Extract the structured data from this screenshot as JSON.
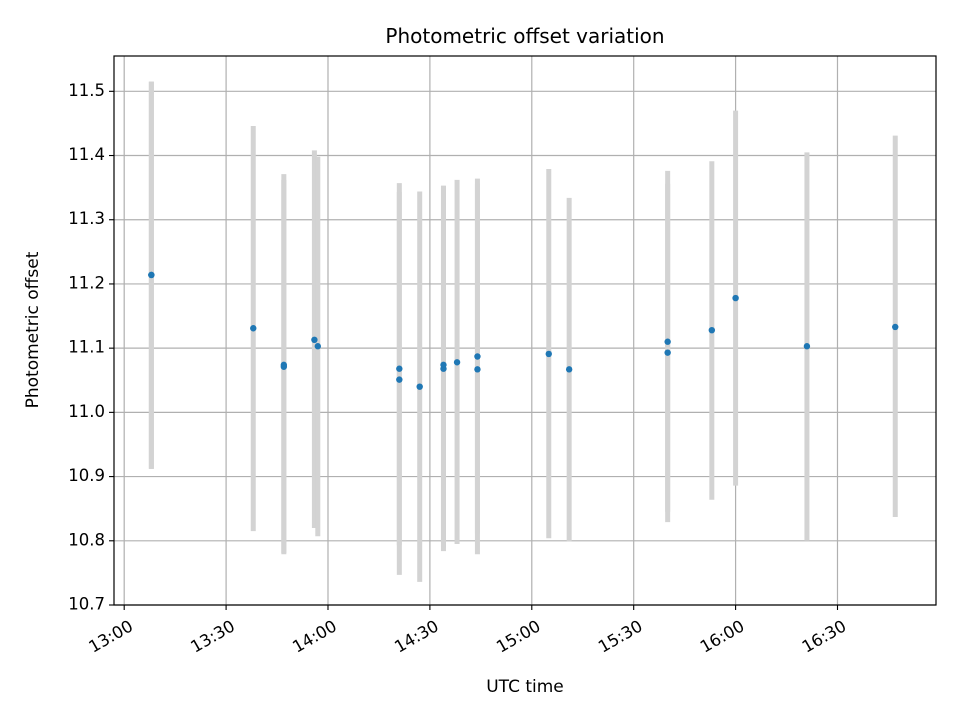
{
  "chart_data": {
    "type": "scatter",
    "title": "Photometric offset variation",
    "xlabel": "UTC time",
    "ylabel": "Photometric offset",
    "xlim": [
      "12:57",
      "16:59"
    ],
    "ylim": [
      10.7,
      11.555
    ],
    "grid": true,
    "x_ticks": [
      "13:00",
      "13:30",
      "14:00",
      "14:30",
      "15:00",
      "15:30",
      "16:00",
      "16:30"
    ],
    "y_ticks": [
      "10.7",
      "10.8",
      "10.9",
      "11.0",
      "11.1",
      "11.2",
      "11.3",
      "11.4",
      "11.5"
    ],
    "point_color": "#1f77b4",
    "errorbar_color": "#d3d3d3",
    "points": [
      {
        "x": "13:08",
        "y": 11.214,
        "ylow": 10.912,
        "yhigh": 11.515
      },
      {
        "x": "13:08",
        "y": 11.214,
        "ylow": 10.912,
        "yhigh": 11.515
      },
      {
        "x": "13:38",
        "y": 11.131,
        "ylow": 10.815,
        "yhigh": 11.446
      },
      {
        "x": "13:47",
        "y": 11.074,
        "ylow": 10.779,
        "yhigh": 11.371
      },
      {
        "x": "13:47",
        "y": 11.071,
        "ylow": 10.781,
        "yhigh": 11.362
      },
      {
        "x": "13:56",
        "y": 11.113,
        "ylow": 10.82,
        "yhigh": 11.408
      },
      {
        "x": "13:57",
        "y": 11.103,
        "ylow": 10.807,
        "yhigh": 11.398
      },
      {
        "x": "14:21",
        "y": 11.051,
        "ylow": 10.747,
        "yhigh": 11.357
      },
      {
        "x": "14:21",
        "y": 11.068,
        "ylow": 10.793,
        "yhigh": 11.343
      },
      {
        "x": "14:27",
        "y": 11.04,
        "ylow": 10.736,
        "yhigh": 11.344
      },
      {
        "x": "14:34",
        "y": 11.068,
        "ylow": 10.784,
        "yhigh": 11.353
      },
      {
        "x": "14:34",
        "y": 11.074,
        "ylow": 10.79,
        "yhigh": 11.353
      },
      {
        "x": "14:38",
        "y": 11.078,
        "ylow": 10.795,
        "yhigh": 11.362
      },
      {
        "x": "14:44",
        "y": 11.087,
        "ylow": 10.811,
        "yhigh": 11.364
      },
      {
        "x": "14:44",
        "y": 11.067,
        "ylow": 10.779,
        "yhigh": 11.356
      },
      {
        "x": "15:05",
        "y": 11.091,
        "ylow": 10.804,
        "yhigh": 11.379
      },
      {
        "x": "15:11",
        "y": 11.067,
        "ylow": 10.799,
        "yhigh": 11.334
      },
      {
        "x": "15:40",
        "y": 11.093,
        "ylow": 10.829,
        "yhigh": 11.356
      },
      {
        "x": "15:40",
        "y": 11.11,
        "ylow": 10.845,
        "yhigh": 11.376
      },
      {
        "x": "15:53",
        "y": 11.128,
        "ylow": 10.864,
        "yhigh": 11.391
      },
      {
        "x": "16:00",
        "y": 11.178,
        "ylow": 10.886,
        "yhigh": 11.47
      },
      {
        "x": "16:21",
        "y": 11.103,
        "ylow": 10.8,
        "yhigh": 11.405
      },
      {
        "x": "16:47",
        "y": 11.133,
        "ylow": 10.837,
        "yhigh": 11.431
      }
    ]
  }
}
